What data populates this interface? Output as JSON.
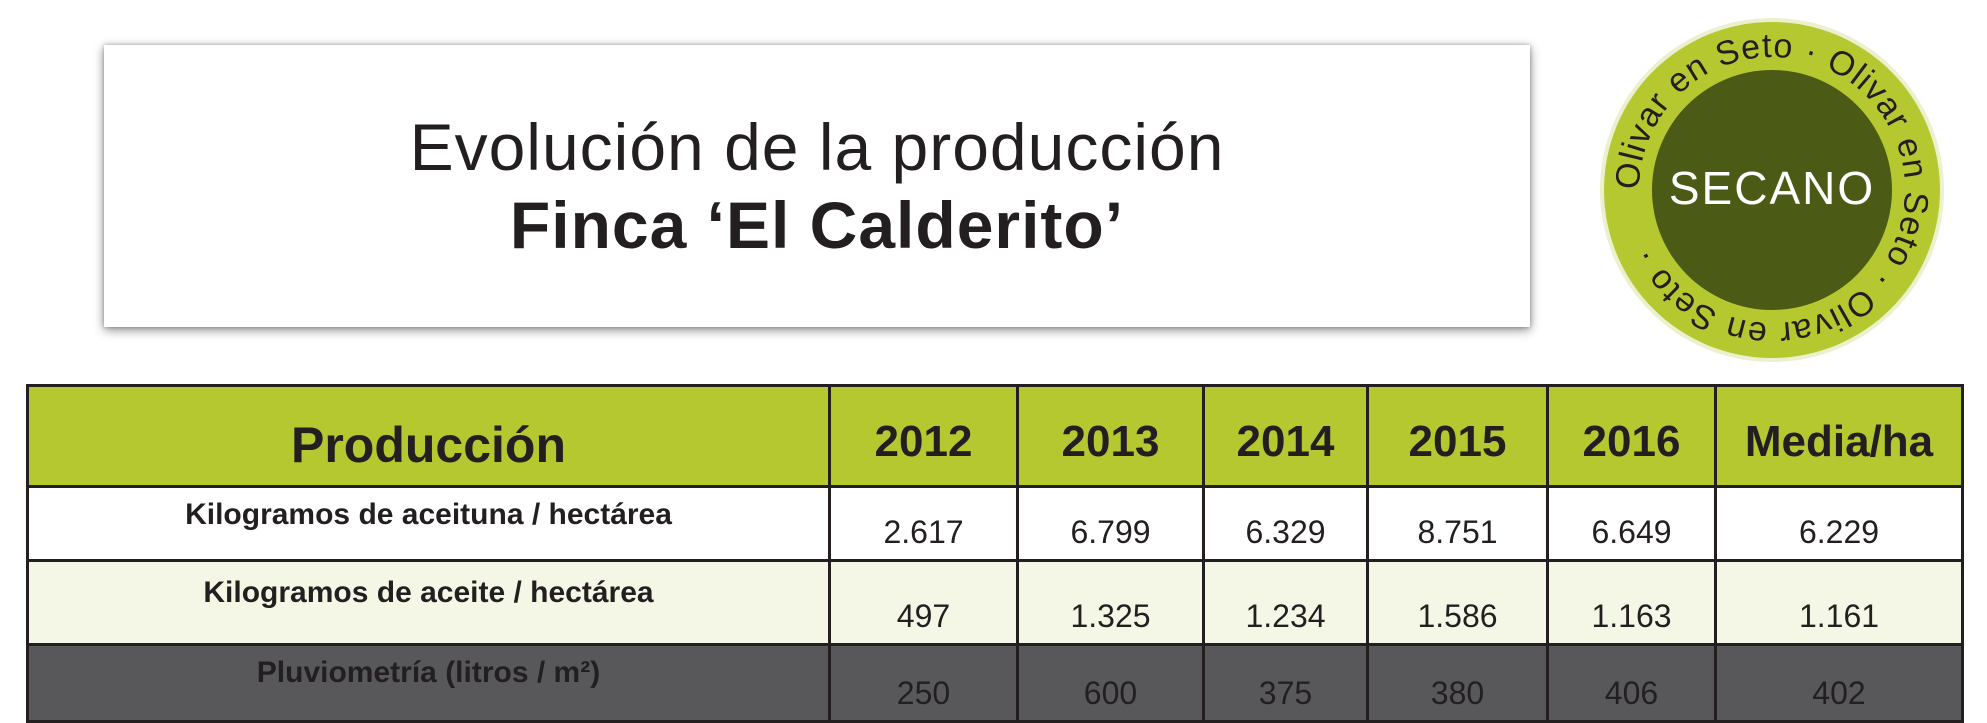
{
  "header": {
    "title_line1": "Evolución de la producción",
    "title_line2": "Finca ‘El Calderito’"
  },
  "badge": {
    "ring_text": "Olivar en Seto · Olivar en Seto · Olivar en Seto ·",
    "center_text": "SECANO",
    "ring_color": "#b5c830",
    "center_color": "#4b5a14"
  },
  "table": {
    "headers": [
      "Producción",
      "2012",
      "2013",
      "2014",
      "2015",
      "2016",
      "Media/ha"
    ],
    "rows": [
      {
        "label": "Kilogramos de aceituna / hectárea",
        "values": [
          "2.617",
          "6.799",
          "6.329",
          "8.751",
          "6.649",
          "6.229"
        ]
      },
      {
        "label": "Kilogramos de aceite / hectárea",
        "values": [
          "497",
          "1.325",
          "1.234",
          "1.586",
          "1.163",
          "1.161"
        ]
      },
      {
        "label": "Pluviometría (litros / m²)",
        "values": [
          "250",
          "600",
          "375",
          "380",
          "406",
          "402"
        ]
      }
    ],
    "colors": {
      "header_bg": "#b5c830",
      "row2_bg": "#f5f7e6",
      "row3_bg": "#58585a"
    }
  }
}
